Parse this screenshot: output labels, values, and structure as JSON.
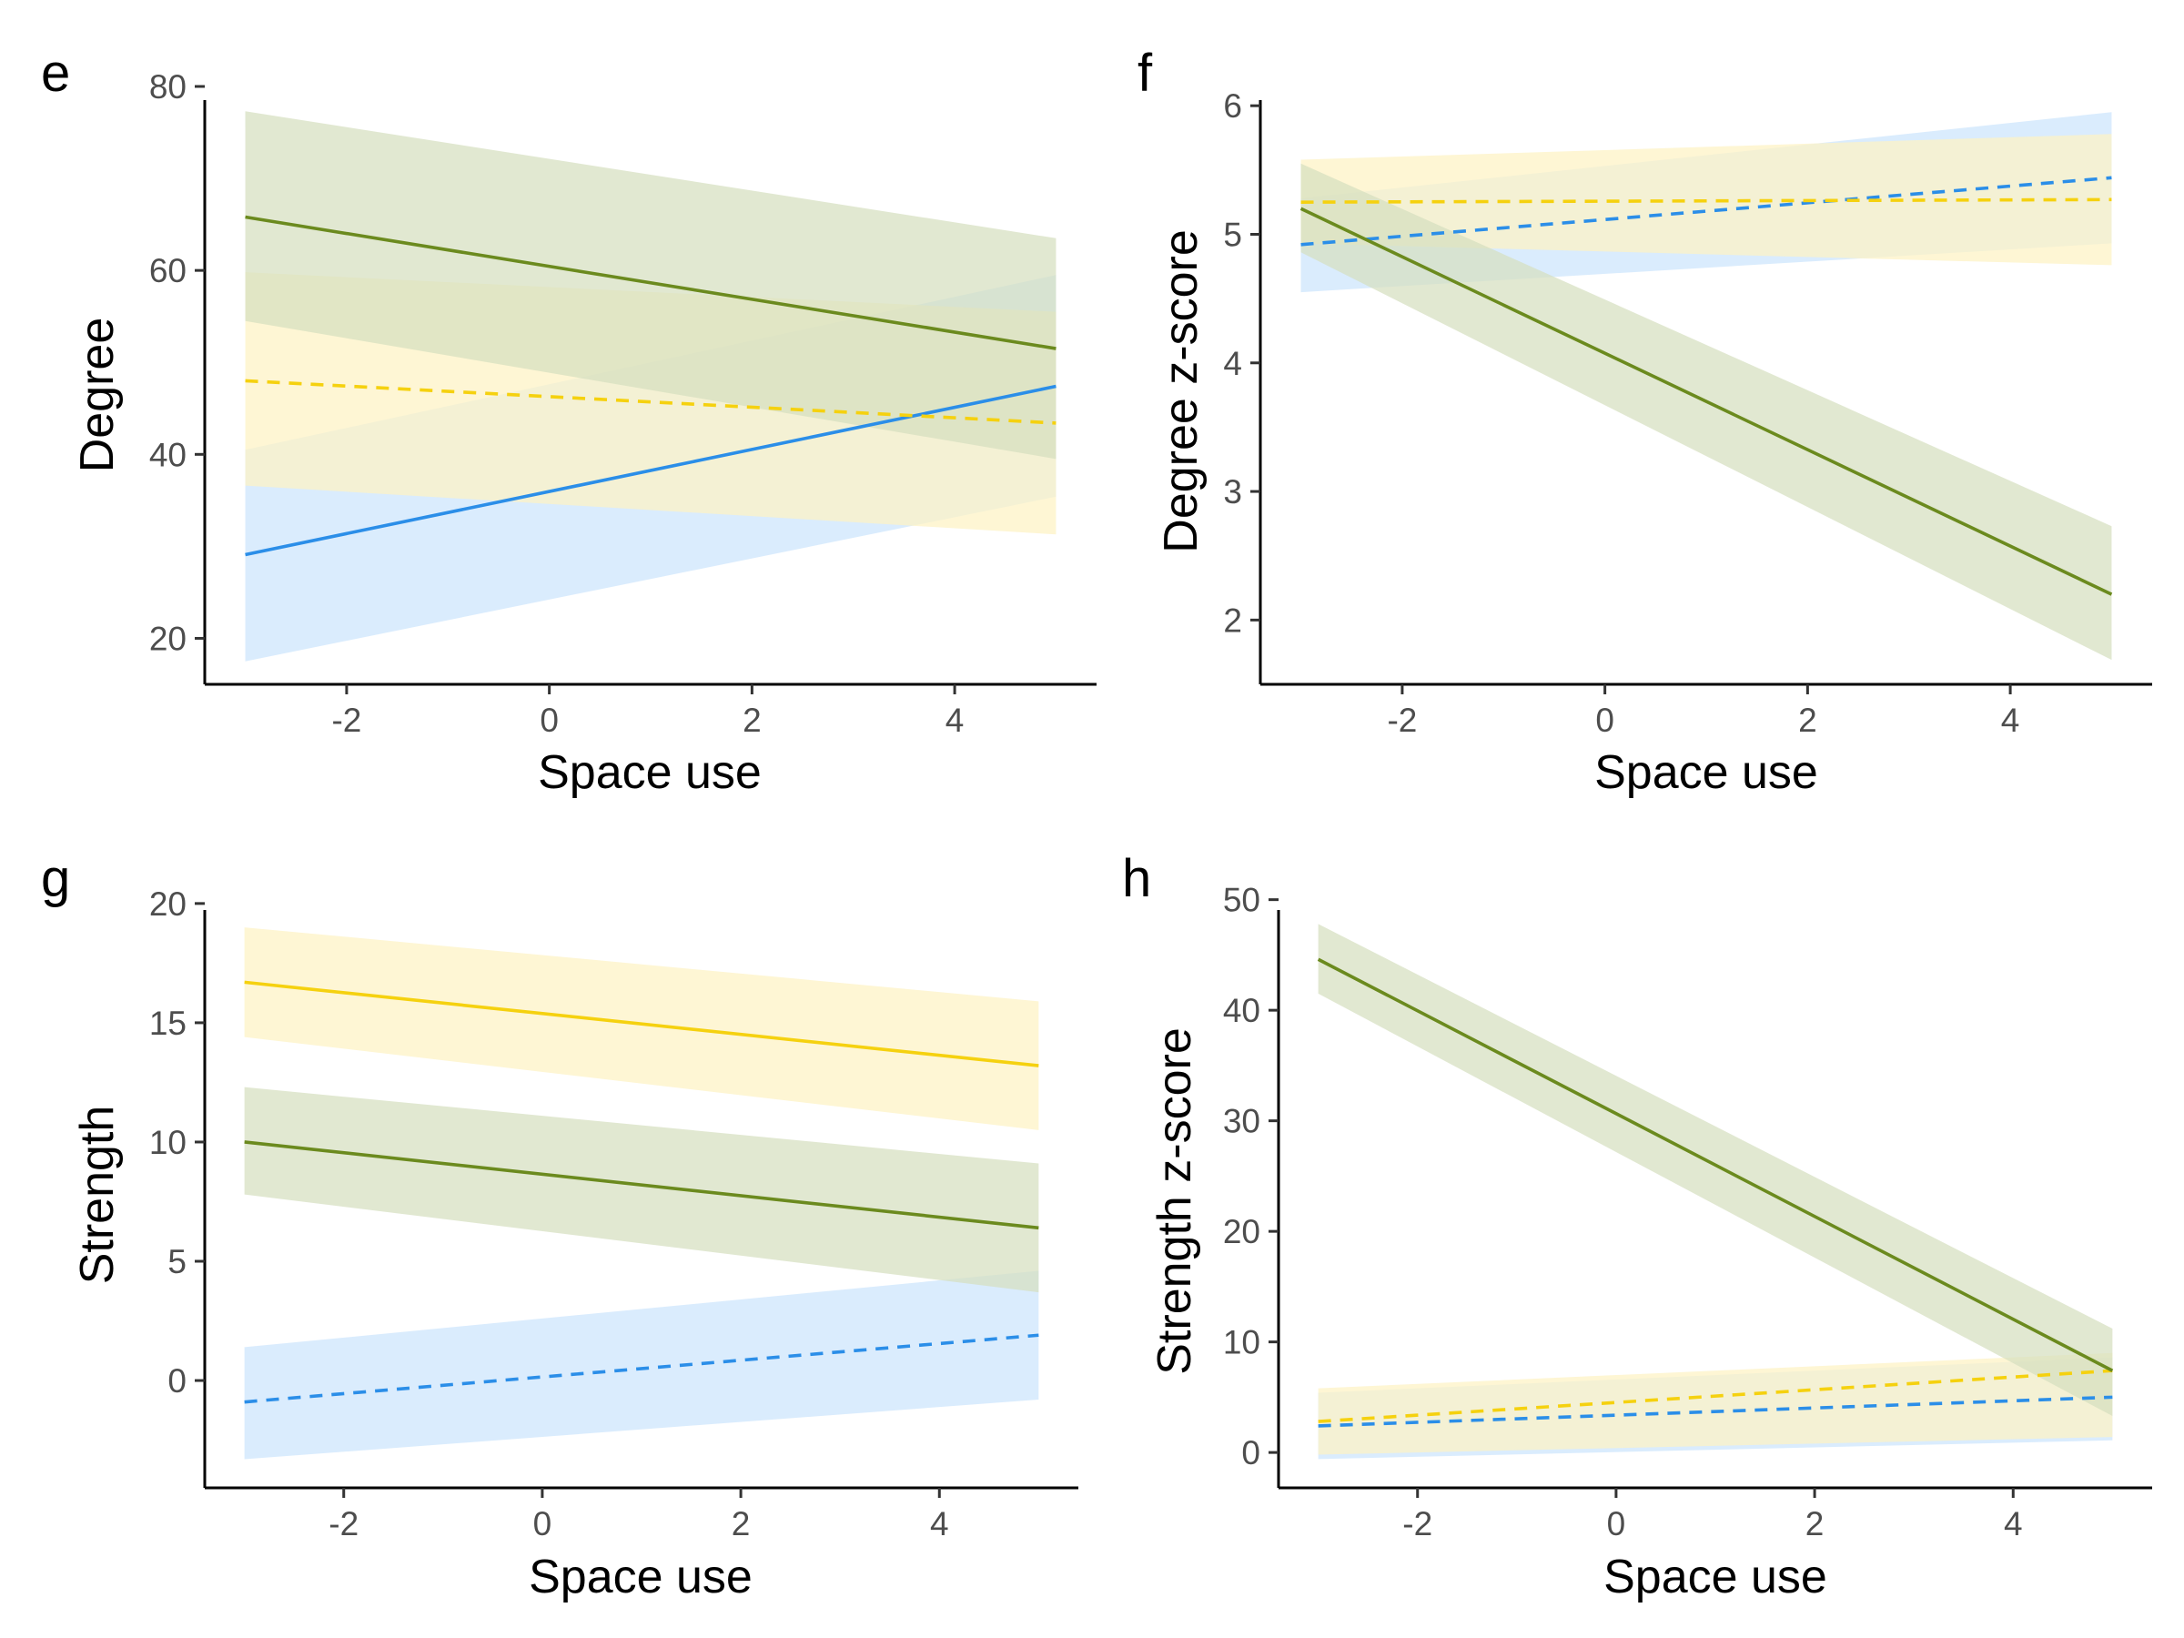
{
  "colors": {
    "blue": "#2b8ee8",
    "blue_band": "#cce4fc",
    "yellow": "#f5d10f",
    "yellow_band": "#fdf3c4",
    "green": "#6b8a1e",
    "green_band": "#d5dfbf"
  },
  "chart_data": [
    {
      "type": "line",
      "panel": "e",
      "xlabel": "Space use",
      "ylabel": "Degree",
      "xlim": [
        -3.4,
        5.4
      ],
      "ylim": [
        15,
        80
      ],
      "xticks": [
        -2,
        0,
        2,
        4
      ],
      "xtick_labels": [
        "-2",
        "0",
        "2",
        "4"
      ],
      "yticks": [
        20,
        40,
        60,
        80
      ],
      "ytick_labels": [
        "20",
        "40",
        "60",
        "80"
      ],
      "grid": false,
      "series": [
        {
          "color": "blue",
          "dash": "solid",
          "x": [
            -3,
            5
          ],
          "y": [
            29.1,
            47.4
          ],
          "lower": [
            17.5,
            35.4
          ],
          "upper": [
            40.5,
            59.5
          ]
        },
        {
          "color": "yellow",
          "dash": "dashed",
          "x": [
            -3,
            5
          ],
          "y": [
            48.0,
            43.4
          ],
          "lower": [
            36.6,
            31.3
          ],
          "upper": [
            59.8,
            55.5
          ]
        },
        {
          "color": "green",
          "dash": "solid",
          "x": [
            -3,
            5
          ],
          "y": [
            65.8,
            51.5
          ],
          "lower": [
            54.5,
            39.5
          ],
          "upper": [
            77.3,
            63.5
          ]
        }
      ]
    },
    {
      "type": "line",
      "panel": "f",
      "xlabel": "Space use",
      "ylabel": "Degree z-score",
      "xlim": [
        -3.4,
        5.4
      ],
      "ylim": [
        1.5,
        6.15
      ],
      "xticks": [
        -2,
        0,
        2,
        4
      ],
      "xtick_labels": [
        "-2",
        "0",
        "2",
        "4"
      ],
      "yticks": [
        2,
        3,
        4,
        5,
        6
      ],
      "ytick_labels": [
        "2",
        "3",
        "4",
        "5",
        "6"
      ],
      "grid": false,
      "series": [
        {
          "color": "blue",
          "dash": "dashed",
          "x": [
            -3,
            5
          ],
          "y": [
            4.92,
            5.44
          ],
          "lower": [
            4.55,
            4.93
          ],
          "upper": [
            5.28,
            5.95
          ]
        },
        {
          "color": "yellow",
          "dash": "dashed",
          "x": [
            -3,
            5
          ],
          "y": [
            5.25,
            5.27
          ],
          "lower": [
            4.93,
            4.76
          ],
          "upper": [
            5.58,
            5.78
          ]
        },
        {
          "color": "green",
          "dash": "solid",
          "x": [
            -3,
            5
          ],
          "y": [
            5.2,
            2.2
          ],
          "lower": [
            4.86,
            1.69
          ],
          "upper": [
            5.55,
            2.73
          ]
        }
      ]
    },
    {
      "type": "line",
      "panel": "g",
      "xlabel": "Space use",
      "ylabel": "Strength",
      "xlim": [
        -3.4,
        5.4
      ],
      "ylim": [
        -4.5,
        20.3
      ],
      "xticks": [
        -2,
        0,
        2,
        4
      ],
      "xtick_labels": [
        "-2",
        "0",
        "2",
        "4"
      ],
      "yticks": [
        0,
        5,
        10,
        15,
        20
      ],
      "ytick_labels": [
        "0",
        "5",
        "10",
        "15",
        "20"
      ],
      "grid": false,
      "series": [
        {
          "color": "blue",
          "dash": "dashed",
          "x": [
            -3,
            5
          ],
          "y": [
            -0.9,
            1.9
          ],
          "lower": [
            -3.3,
            -0.8
          ],
          "upper": [
            1.4,
            4.6
          ]
        },
        {
          "color": "yellow",
          "dash": "solid",
          "x": [
            -3,
            5
          ],
          "y": [
            16.7,
            13.2
          ],
          "lower": [
            14.4,
            10.5
          ],
          "upper": [
            19.0,
            15.9
          ]
        },
        {
          "color": "green",
          "dash": "solid",
          "x": [
            -3,
            5
          ],
          "y": [
            10.0,
            6.4
          ],
          "lower": [
            7.8,
            3.7
          ],
          "upper": [
            12.3,
            9.1
          ]
        }
      ]
    },
    {
      "type": "line",
      "panel": "h",
      "xlabel": "Space use",
      "ylabel": "Strength z-score",
      "xlim": [
        -3.4,
        5.4
      ],
      "ylim": [
        -3.2,
        50.3
      ],
      "xticks": [
        -2,
        0,
        2,
        4
      ],
      "xtick_labels": [
        "-2",
        "0",
        "2",
        "4"
      ],
      "yticks": [
        0,
        10,
        20,
        30,
        40,
        50
      ],
      "ytick_labels": [
        "0",
        "10",
        "20",
        "30",
        "40",
        "50"
      ],
      "grid": false,
      "series": [
        {
          "color": "blue",
          "dash": "dashed",
          "x": [
            -3,
            5
          ],
          "y": [
            2.4,
            5.0
          ],
          "lower": [
            -0.6,
            1.1
          ],
          "upper": [
            5.4,
            8.6
          ]
        },
        {
          "color": "yellow",
          "dash": "dashed",
          "x": [
            -3,
            5
          ],
          "y": [
            2.8,
            7.4
          ],
          "lower": [
            -0.2,
            1.4
          ],
          "upper": [
            5.8,
            9.0
          ]
        },
        {
          "color": "green",
          "dash": "solid",
          "x": [
            -3,
            5
          ],
          "y": [
            44.6,
            7.4
          ],
          "lower": [
            41.5,
            3.3
          ],
          "upper": [
            47.8,
            11.2
          ]
        }
      ]
    }
  ]
}
